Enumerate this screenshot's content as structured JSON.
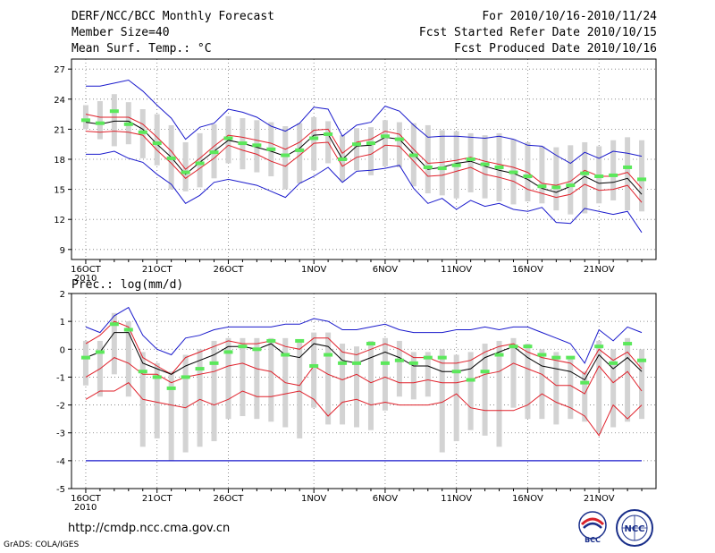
{
  "header": {
    "title": "DERF/NCC/BCC Monthly Forecast",
    "member_size": "Member Size=40",
    "variable": "Mean Surf. Temp.: °C",
    "forecast_period": "For 2010/10/16-2010/11/24",
    "started_refer": "Fcst Started Refer Date 2010/10/15",
    "produced": "Fcst Produced Date 2010/10/16"
  },
  "footer": {
    "url": "http://cmdp.ncc.cma.gov.cn",
    "grads": "GrADS: COLA/IGES",
    "logo_bcc": "BCC",
    "logo_ncc": "NCC"
  },
  "colors": {
    "box": "#d3d3d3",
    "median": "#000000",
    "inner": "#e0202a",
    "outer": "#1a1acc",
    "obs": "#5be85b",
    "grid": "#777777"
  },
  "chart_data": [
    {
      "type": "line",
      "title": "Mean Surf. Temp.: °C",
      "x_labels": [
        "16OCT",
        "21OCT",
        "26OCT",
        "1NOV",
        "6NOV",
        "11NOV",
        "16NOV",
        "21NOV"
      ],
      "x_label_sub": "2010",
      "x": [
        1,
        2,
        3,
        4,
        5,
        6,
        7,
        8,
        9,
        10,
        11,
        12,
        13,
        14,
        15,
        16,
        17,
        18,
        19,
        20,
        21,
        22,
        23,
        24,
        25,
        26,
        27,
        28,
        29,
        30,
        31,
        32,
        33,
        34,
        35,
        36,
        37,
        38,
        39,
        40
      ],
      "xlim": [
        0,
        41
      ],
      "ylim": [
        8,
        28
      ],
      "yticks": [
        9,
        12,
        15,
        18,
        21,
        24,
        27
      ],
      "series": [
        {
          "name": "outer_max",
          "color": "#1a1acc",
          "values": [
            25.3,
            25.3,
            25.6,
            25.9,
            24.8,
            23.4,
            22.1,
            20.0,
            21.2,
            21.6,
            23.0,
            22.7,
            22.2,
            21.3,
            20.8,
            21.6,
            23.2,
            23.0,
            20.3,
            21.4,
            21.7,
            23.3,
            22.8,
            21.4,
            20.2,
            20.3,
            20.3,
            20.2,
            20.1,
            20.3,
            20.0,
            19.4,
            19.3,
            18.4,
            17.6,
            18.7,
            18.1,
            18.8,
            18.6,
            18.3
          ]
        },
        {
          "name": "inner_upper",
          "color": "#e0202a",
          "values": [
            22.5,
            22.2,
            22.2,
            22.2,
            21.5,
            20.2,
            18.8,
            17.0,
            18.1,
            19.3,
            20.4,
            20.2,
            19.9,
            19.6,
            19.0,
            19.7,
            20.9,
            21.0,
            18.6,
            19.7,
            20.0,
            20.8,
            20.5,
            19.0,
            17.6,
            17.7,
            17.9,
            18.2,
            17.8,
            17.5,
            17.2,
            16.7,
            15.6,
            15.4,
            15.8,
            16.9,
            16.3,
            16.3,
            16.7,
            15.1
          ]
        },
        {
          "name": "median",
          "color": "#000000",
          "values": [
            21.7,
            21.5,
            21.8,
            21.8,
            21.0,
            19.5,
            18.2,
            16.5,
            17.7,
            18.8,
            19.9,
            19.6,
            19.2,
            18.8,
            18.3,
            19.1,
            20.4,
            20.5,
            18.0,
            19.3,
            19.4,
            20.2,
            20.0,
            18.5,
            17.0,
            17.2,
            17.6,
            17.8,
            17.3,
            16.9,
            16.6,
            16.0,
            15.1,
            14.7,
            15.3,
            16.3,
            15.6,
            15.7,
            16.1,
            14.5
          ]
        },
        {
          "name": "inner_lower",
          "color": "#e0202a",
          "values": [
            20.8,
            20.7,
            20.8,
            20.7,
            20.4,
            18.9,
            17.6,
            16.1,
            17.1,
            18.1,
            19.4,
            18.9,
            18.5,
            17.8,
            17.3,
            18.4,
            19.6,
            19.7,
            17.3,
            18.2,
            18.5,
            19.4,
            19.3,
            17.8,
            16.3,
            16.4,
            16.8,
            17.2,
            16.5,
            16.2,
            15.8,
            15.0,
            14.6,
            14.2,
            14.5,
            15.5,
            14.9,
            15.0,
            15.4,
            13.7
          ]
        },
        {
          "name": "outer_min",
          "color": "#1a1acc",
          "values": [
            18.5,
            18.5,
            18.8,
            18.1,
            17.7,
            16.5,
            15.5,
            13.6,
            14.4,
            15.7,
            16.0,
            15.7,
            15.4,
            14.8,
            14.2,
            15.6,
            16.3,
            17.2,
            15.7,
            16.8,
            16.9,
            17.1,
            17.4,
            15.1,
            13.6,
            14.1,
            13.0,
            13.9,
            13.3,
            13.6,
            13.0,
            12.8,
            13.2,
            11.7,
            11.6,
            13.1,
            12.8,
            12.5,
            12.8,
            10.7
          ]
        },
        {
          "name": "obs_mark",
          "color": "#5be85b",
          "values": [
            21.9,
            21.6,
            22.8,
            21.5,
            20.7,
            19.6,
            18.1,
            16.7,
            17.6,
            18.7,
            20.1,
            19.6,
            19.4,
            19.0,
            18.4,
            18.9,
            20.1,
            20.5,
            18.0,
            19.5,
            19.6,
            20.3,
            20.0,
            18.4,
            17.2,
            17.1,
            17.4,
            18.0,
            17.5,
            17.2,
            16.7,
            16.3,
            15.3,
            15.2,
            15.4,
            16.6,
            16.3,
            16.4,
            17.2,
            16.0
          ]
        },
        {
          "name": "box_high",
          "color": "#d3d3d3",
          "values": [
            23.4,
            23.8,
            24.5,
            23.7,
            23.0,
            22.5,
            21.4,
            19.7,
            20.6,
            21.5,
            22.3,
            22.1,
            21.9,
            21.7,
            21.3,
            21.6,
            22.2,
            21.8,
            20.4,
            21.1,
            21.2,
            21.9,
            21.7,
            21.6,
            21.4,
            20.9,
            20.8,
            20.6,
            20.4,
            20.6,
            20.0,
            19.7,
            19.3,
            19.2,
            19.4,
            19.7,
            19.3,
            19.9,
            20.2,
            19.9
          ]
        },
        {
          "name": "box_low",
          "color": "#d3d3d3",
          "values": [
            21.0,
            20.0,
            19.3,
            19.5,
            18.1,
            17.4,
            15.0,
            14.8,
            15.2,
            16.1,
            17.6,
            17.0,
            16.7,
            16.3,
            15.0,
            15.6,
            16.9,
            17.6,
            15.8,
            16.9,
            16.4,
            17.3,
            17.2,
            15.3,
            14.6,
            14.4,
            14.1,
            14.7,
            14.1,
            13.8,
            13.5,
            13.8,
            13.6,
            12.9,
            12.5,
            12.6,
            13.6,
            13.9,
            12.9,
            12.8
          ]
        }
      ]
    },
    {
      "type": "line",
      "title": "Prec.: log(mm/d)",
      "x_labels": [
        "16OCT",
        "21OCT",
        "26OCT",
        "1NOV",
        "6NOV",
        "11NOV",
        "16NOV",
        "21NOV"
      ],
      "x_label_sub": "2010",
      "x": [
        1,
        2,
        3,
        4,
        5,
        6,
        7,
        8,
        9,
        10,
        11,
        12,
        13,
        14,
        15,
        16,
        17,
        18,
        19,
        20,
        21,
        22,
        23,
        24,
        25,
        26,
        27,
        28,
        29,
        30,
        31,
        32,
        33,
        34,
        35,
        36,
        37,
        38,
        39,
        40
      ],
      "xlim": [
        0,
        41
      ],
      "ylim": [
        -5,
        2
      ],
      "yticks": [
        -5,
        -4,
        -3,
        -2,
        -1,
        0,
        1,
        2
      ],
      "floor_value": -4,
      "series": [
        {
          "name": "outer_max",
          "color": "#1a1acc",
          "values": [
            0.8,
            0.6,
            1.2,
            1.5,
            0.5,
            0.0,
            -0.2,
            0.4,
            0.5,
            0.7,
            0.8,
            0.8,
            0.8,
            0.8,
            0.9,
            0.9,
            1.1,
            1.0,
            0.7,
            0.7,
            0.8,
            0.9,
            0.7,
            0.6,
            0.6,
            0.6,
            0.7,
            0.7,
            0.8,
            0.7,
            0.8,
            0.8,
            0.6,
            0.4,
            0.2,
            -0.5,
            0.7,
            0.3,
            0.8,
            0.6
          ]
        },
        {
          "name": "inner_upper",
          "color": "#e0202a",
          "values": [
            0.2,
            0.5,
            1.0,
            0.8,
            -0.3,
            -0.6,
            -0.9,
            -0.3,
            -0.1,
            0.1,
            0.3,
            0.2,
            0.2,
            0.3,
            0.1,
            0.0,
            0.4,
            0.4,
            -0.1,
            -0.2,
            0.0,
            0.2,
            0.0,
            -0.3,
            -0.3,
            -0.5,
            -0.5,
            -0.4,
            -0.1,
            0.1,
            0.2,
            -0.1,
            -0.3,
            -0.4,
            -0.5,
            -0.9,
            0.0,
            -0.4,
            -0.1,
            -0.7
          ]
        },
        {
          "name": "median",
          "color": "#000000",
          "values": [
            -0.3,
            -0.1,
            0.6,
            0.6,
            -0.5,
            -0.7,
            -0.9,
            -0.6,
            -0.4,
            -0.2,
            0.1,
            0.1,
            0.0,
            0.2,
            -0.2,
            -0.3,
            0.2,
            0.1,
            -0.4,
            -0.5,
            -0.3,
            -0.1,
            -0.3,
            -0.6,
            -0.6,
            -0.8,
            -0.8,
            -0.7,
            -0.3,
            -0.1,
            0.1,
            -0.3,
            -0.6,
            -0.7,
            -0.8,
            -1.1,
            -0.2,
            -0.7,
            -0.3,
            -0.8
          ]
        },
        {
          "name": "inner_lower",
          "color": "#e0202a",
          "values": [
            -1.0,
            -0.7,
            -0.3,
            -0.5,
            -0.9,
            -0.9,
            -1.2,
            -1.0,
            -0.9,
            -0.8,
            -0.6,
            -0.5,
            -0.7,
            -0.8,
            -1.2,
            -1.3,
            -0.6,
            -0.9,
            -1.1,
            -0.9,
            -1.2,
            -1.0,
            -1.2,
            -1.2,
            -1.1,
            -1.2,
            -1.2,
            -1.1,
            -0.9,
            -0.8,
            -0.5,
            -0.7,
            -0.9,
            -1.3,
            -1.3,
            -1.6,
            -0.6,
            -1.2,
            -0.8,
            -1.5
          ]
        },
        {
          "name": "outer_min",
          "color": "#1a1acc",
          "values": [
            -4.0,
            -4.0,
            -4.0,
            -4.0,
            -4.0,
            -4.0,
            -4.0,
            -4.0,
            -4.0,
            -4.0,
            -4.0,
            -4.0,
            -4.0,
            -4.0,
            -4.0,
            -4.0,
            -4.0,
            -4.0,
            -4.0,
            -4.0,
            -4.0,
            -4.0,
            -4.0,
            -4.0,
            -4.0,
            -4.0,
            -4.0,
            -4.0,
            -4.0,
            -4.0,
            -4.0,
            -4.0,
            -4.0,
            -4.0,
            -4.0,
            -4.0,
            -4.0,
            -4.0,
            -4.0,
            -4.0
          ]
        },
        {
          "name": "extra_low",
          "color": "#e0202a",
          "values": [
            -1.8,
            -1.5,
            -1.5,
            -1.2,
            -1.8,
            -1.9,
            -2.0,
            -2.1,
            -1.8,
            -2.0,
            -1.8,
            -1.5,
            -1.7,
            -1.7,
            -1.6,
            -1.5,
            -1.8,
            -2.4,
            -1.9,
            -1.8,
            -2.0,
            -1.9,
            -2.0,
            -2.0,
            -2.0,
            -1.9,
            -1.6,
            -2.1,
            -2.2,
            -2.2,
            -2.2,
            -2.0,
            -1.6,
            -1.9,
            -2.1,
            -2.4,
            -3.1,
            -2.0,
            -2.5,
            -2.0
          ]
        },
        {
          "name": "obs_mark",
          "color": "#5be85b",
          "values": [
            -0.3,
            -0.1,
            0.9,
            0.7,
            -0.8,
            -1.0,
            -1.4,
            -1.0,
            -0.7,
            -0.5,
            -0.1,
            0.1,
            0.0,
            0.3,
            -0.2,
            0.3,
            -0.6,
            -0.2,
            -0.5,
            -0.5,
            0.2,
            -0.5,
            -0.4,
            -0.5,
            -0.3,
            -0.3,
            -0.8,
            -1.1,
            -0.8,
            -0.2,
            0.1,
            0.1,
            -0.2,
            -0.3,
            -0.3,
            -1.2,
            0.1,
            -0.5,
            0.2,
            -0.4
          ]
        },
        {
          "name": "box_high",
          "color": "#d3d3d3",
          "values": [
            0.3,
            0.3,
            1.3,
            1.0,
            -0.1,
            -0.5,
            -0.8,
            -0.2,
            0.0,
            0.3,
            0.4,
            0.4,
            0.4,
            0.4,
            0.4,
            0.3,
            0.6,
            0.6,
            0.2,
            0.1,
            0.3,
            0.4,
            0.3,
            -0.1,
            -0.1,
            0.0,
            -0.2,
            -0.1,
            0.2,
            0.3,
            0.4,
            0.2,
            0.0,
            -0.1,
            -0.3,
            -0.8,
            0.3,
            0.0,
            0.4,
            0.0
          ]
        },
        {
          "name": "box_low",
          "color": "#d3d3d3",
          "values": [
            -1.3,
            -1.7,
            -0.9,
            -1.7,
            -3.5,
            -3.2,
            -4.0,
            -3.7,
            -3.5,
            -3.3,
            -2.5,
            -2.4,
            -2.5,
            -2.6,
            -2.8,
            -3.2,
            -2.1,
            -2.7,
            -2.7,
            -2.8,
            -2.9,
            -2.2,
            -1.7,
            -1.8,
            -1.7,
            -3.7,
            -3.3,
            -2.9,
            -3.1,
            -3.5,
            -2.1,
            -2.5,
            -2.5,
            -2.7,
            -2.5,
            -2.6,
            -3.0,
            -2.8,
            -2.6,
            -2.5
          ]
        }
      ]
    }
  ]
}
